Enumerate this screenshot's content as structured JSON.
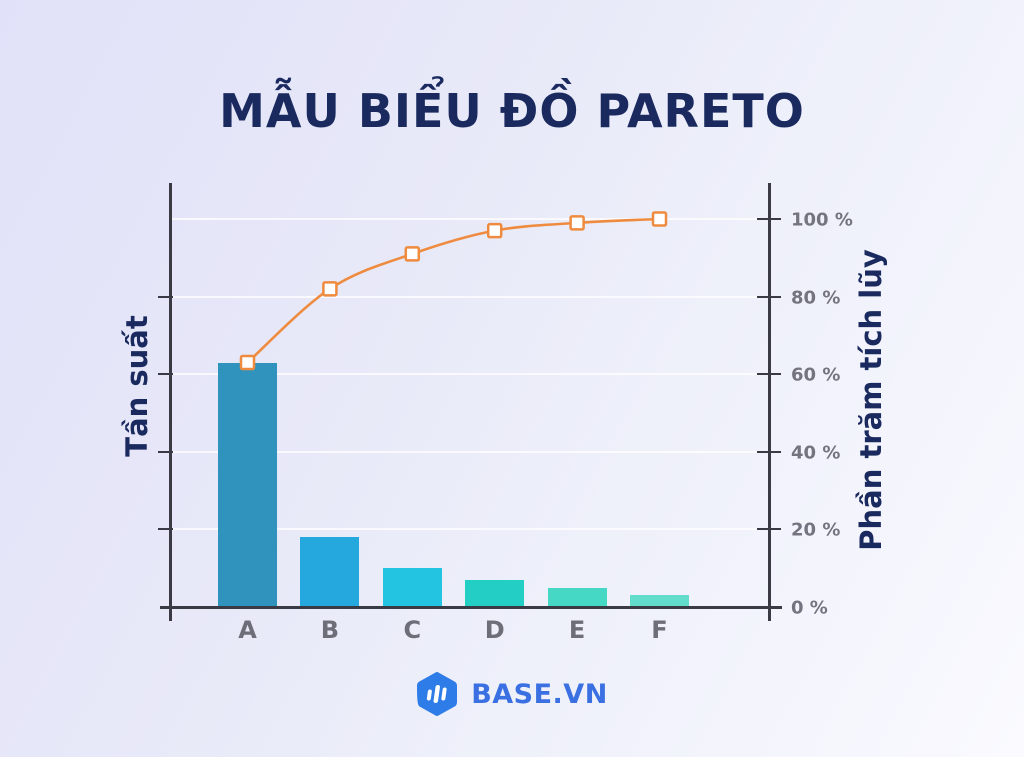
{
  "title": "MẪU BIỂU ĐỒ PARETO",
  "axes": {
    "left_label": "Tần suất",
    "right_label": "Phần trăm tích lũy"
  },
  "chart_data": {
    "type": "pareto (bar + line)",
    "title": "MẪU BIỂU ĐỒ PARETO",
    "categories": [
      "A",
      "B",
      "C",
      "D",
      "E",
      "F"
    ],
    "series": [
      {
        "name": "Tần suất",
        "type": "bar",
        "axis": "left",
        "values": [
          63,
          18,
          10,
          7,
          5,
          3
        ],
        "bar_colors": [
          "#2f93bd",
          "#24a8dd",
          "#22c4e2",
          "#23cfc4",
          "#45d9c5",
          "#63ddcb"
        ]
      },
      {
        "name": "Phần trăm tích lũy",
        "type": "line",
        "axis": "right",
        "values": [
          63,
          82,
          91,
          97,
          99,
          100
        ],
        "color": "#ee8b3e",
        "marker": "white square with orange border"
      }
    ],
    "xlabel": "",
    "ylabel_left": "Tần suất",
    "ylabel_right": "Phần trăm tích lũy",
    "right_axis_range": [
      0,
      100
    ],
    "right_axis_ticks": [
      {
        "label": "0 %",
        "value": 0
      },
      {
        "label": "20 %",
        "value": 20
      },
      {
        "label": "40 %",
        "value": 40
      },
      {
        "label": "60 %",
        "value": 60
      },
      {
        "label": "80 %",
        "value": 80
      },
      {
        "label": "100 %",
        "value": 100
      }
    ],
    "left_axis_tick_values": [
      20,
      40,
      60,
      80
    ],
    "left_axis_tick_labels": "none",
    "grid": "faint horizontal white lines at 20% intervals",
    "legend": "none"
  },
  "colors": {
    "axis": "#3a3a45",
    "tick_text": "#73747f",
    "category_text": "#6d6e78",
    "title_text": "#1a2a5f",
    "line": "#ee8b3e",
    "marker_fill": "#ffffff",
    "brand_hexagon": "#2e7ce8",
    "brand_text": "#3a70e2"
  },
  "footer": {
    "brand": "BASE.VN"
  }
}
